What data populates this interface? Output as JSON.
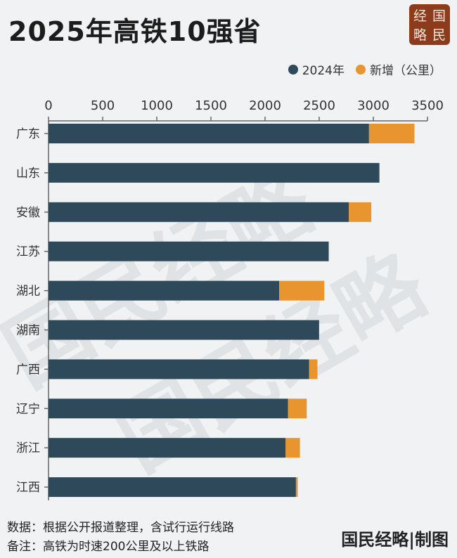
{
  "title": "2025年高铁10强省",
  "logo": {
    "chars": [
      "经",
      "国",
      "略",
      "民"
    ],
    "color": "#8c3b1c"
  },
  "watermark": "国民经略",
  "footer": {
    "source": "数据：根据公开报道整理，含试行运行线路",
    "note": "备注：高铁为时速200公里及以上铁路",
    "signature": "国民经略|制图"
  },
  "chart_data": {
    "type": "bar",
    "orientation": "horizontal",
    "stacked": true,
    "categories": [
      "广东",
      "山东",
      "安徽",
      "江苏",
      "湖北",
      "湖南",
      "广西",
      "辽宁",
      "浙江",
      "江西"
    ],
    "series": [
      {
        "name": "2024年",
        "color": "#2e4a5a",
        "values": [
          2960,
          3056,
          2774,
          2588,
          2131,
          2499,
          2406,
          2211,
          2190,
          2285
        ]
      },
      {
        "name": "新增（公里）",
        "color": "#e8952f",
        "values": [
          420,
          0,
          207,
          0,
          416,
          0,
          78,
          174,
          132,
          17
        ]
      }
    ],
    "xlim": [
      0,
      3500
    ],
    "xticks": [
      "0",
      "500",
      "1000",
      "1500",
      "2000",
      "2500",
      "3000",
      "3500"
    ],
    "axis_position": "top",
    "legend": "top-right",
    "grid": false
  }
}
